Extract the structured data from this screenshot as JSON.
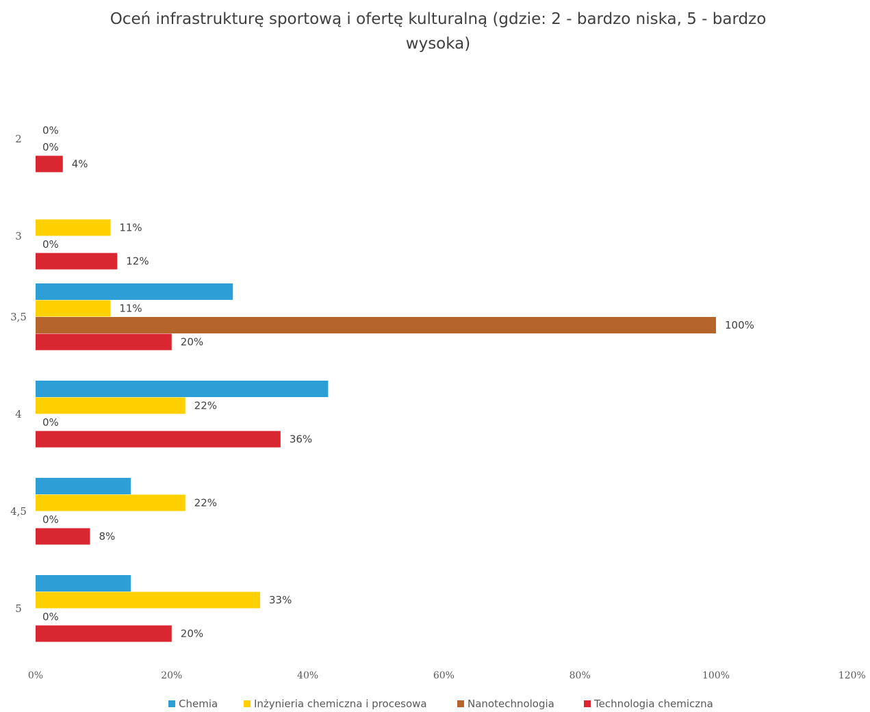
{
  "chart_data": {
    "type": "bar",
    "orientation": "horizontal",
    "title": "Oceń infrastrukturę sportową i ofertę kulturalną (gdzie: 2 - bardzo niska, 5 - bardzo wysoka)",
    "categories": [
      "2",
      "3",
      "3,5",
      "4",
      "4,5",
      "5"
    ],
    "x_ticks": [
      "0%",
      "20%",
      "40%",
      "60%",
      "80%",
      "100%",
      "120%"
    ],
    "xlim": [
      0,
      120
    ],
    "grid": false,
    "legend_position": "bottom",
    "series": [
      {
        "name": "Chemia",
        "color": "#2E9ED6",
        "values": [
          null,
          null,
          29,
          43,
          14,
          14
        ],
        "labels": [
          "",
          "",
          "",
          "",
          "",
          ""
        ]
      },
      {
        "name": "Inżynieria chemiczna i procesowa",
        "color": "#FFD000",
        "values": [
          0,
          11,
          11,
          22,
          22,
          33
        ],
        "labels": [
          "0%",
          "11%",
          "11%",
          "22%",
          "22%",
          "33%"
        ]
      },
      {
        "name": "Nanotechnologia",
        "color": "#B5652B",
        "values": [
          0,
          0,
          100,
          0,
          0,
          0
        ],
        "labels": [
          "0%",
          "0%",
          "100%",
          "0%",
          "0%",
          "0%"
        ]
      },
      {
        "name": "Technologia chemiczna",
        "color": "#D92732",
        "values": [
          4,
          12,
          20,
          36,
          8,
          20
        ],
        "labels": [
          "4%",
          "12%",
          "20%",
          "36%",
          "8%",
          "20%"
        ]
      }
    ]
  }
}
